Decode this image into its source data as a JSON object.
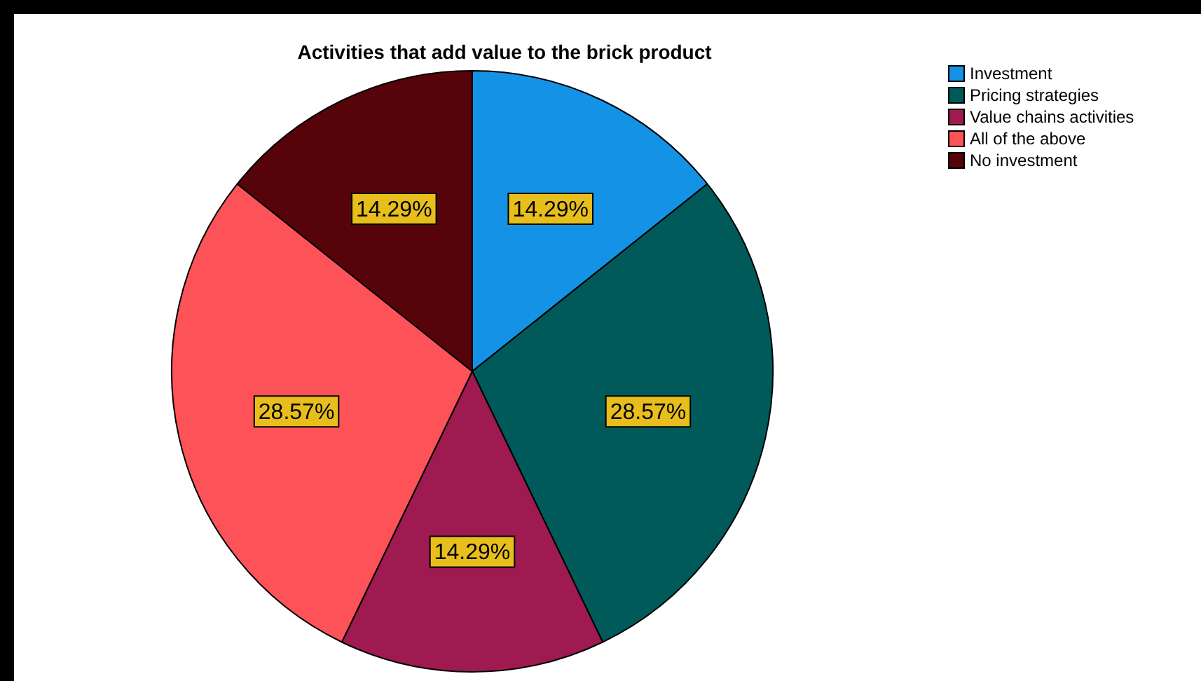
{
  "chart_data": {
    "type": "pie",
    "title": "Activities that add value to the brick product",
    "categories": [
      "Investment",
      "Pricing strategies",
      "Value chains activities",
      "All of the above",
      "No investment"
    ],
    "values": [
      14.29,
      28.57,
      14.29,
      28.57,
      14.29
    ],
    "colors": [
      "#1493e6",
      "#005a5a",
      "#9e1a50",
      "#fd5257",
      "#560409"
    ],
    "value_labels": [
      "14.29%",
      "28.57%",
      "14.29%",
      "28.57%",
      "14.29%"
    ],
    "legend": "top right"
  }
}
